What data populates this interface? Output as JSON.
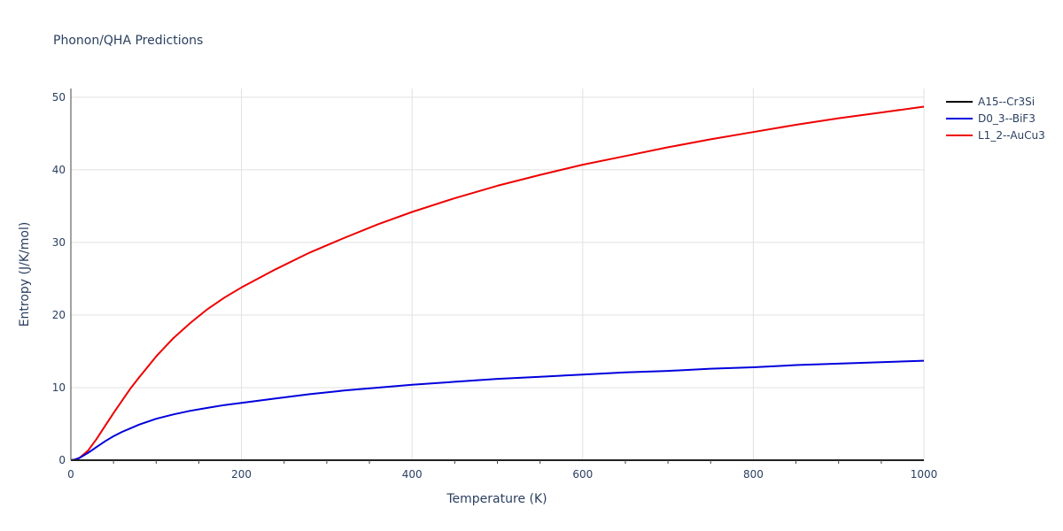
{
  "chart_data": {
    "type": "line",
    "title": "Phonon/QHA Predictions",
    "xlabel": "Temperature (K)",
    "ylabel": "Entropy (J/K/mol)",
    "xlim": [
      0,
      1000
    ],
    "ylim": [
      0,
      51.2
    ],
    "xticks": [
      0,
      200,
      400,
      600,
      800,
      1000
    ],
    "yticks": [
      0,
      10,
      20,
      30,
      40,
      50
    ],
    "grid": true,
    "legend_position": "top-right",
    "x": [
      0,
      5,
      10,
      20,
      30,
      40,
      50,
      60,
      70,
      80,
      100,
      120,
      140,
      160,
      180,
      200,
      240,
      280,
      320,
      360,
      400,
      450,
      500,
      550,
      600,
      650,
      700,
      750,
      800,
      850,
      900,
      950,
      1000
    ],
    "series": [
      {
        "name": "A15--Cr3Si",
        "color": "#000000",
        "values": [
          0,
          0,
          0,
          0,
          0,
          0,
          0,
          0,
          0,
          0,
          0,
          0,
          0,
          0,
          0,
          0,
          0,
          0,
          0,
          0,
          0,
          0,
          0,
          0,
          0,
          0,
          0,
          0,
          0,
          0,
          0,
          0,
          0
        ]
      },
      {
        "name": "D0_3--BiF3",
        "color": "#0000dd",
        "values": [
          0,
          0.1,
          0.3,
          1.0,
          1.8,
          2.6,
          3.3,
          3.9,
          4.4,
          4.9,
          5.7,
          6.3,
          6.8,
          7.2,
          7.6,
          7.9,
          8.5,
          9.1,
          9.6,
          10.0,
          10.4,
          10.8,
          11.2,
          11.5,
          11.8,
          12.1,
          12.3,
          12.6,
          12.8,
          13.1,
          13.3,
          13.5,
          13.7
        ]
      },
      {
        "name": "L1_2--AuCu3",
        "color": "#ee0000",
        "values": [
          0,
          0.1,
          0.3,
          1.3,
          2.9,
          4.7,
          6.5,
          8.2,
          9.9,
          11.4,
          14.3,
          16.8,
          18.9,
          20.8,
          22.4,
          23.8,
          26.3,
          28.6,
          30.6,
          32.5,
          34.2,
          36.1,
          37.8,
          39.3,
          40.7,
          41.9,
          43.1,
          44.2,
          45.2,
          46.2,
          47.1,
          47.9,
          48.7
        ]
      }
    ]
  }
}
